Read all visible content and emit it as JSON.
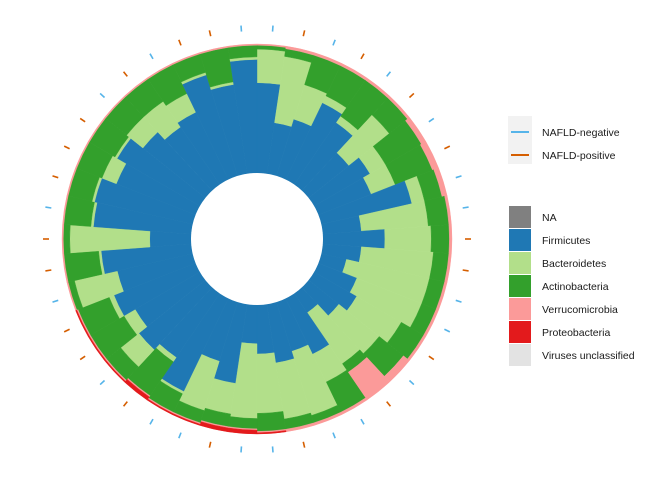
{
  "chart_data": {
    "type": "circular-stacked-bar",
    "title": "",
    "coordinate": "polar",
    "stack_order_inner_to_outer": [
      "NA",
      "Firmicutes",
      "Bacteroidetes",
      "Actinobacteria",
      "Verrucomicrobia",
      "Proteobacteria",
      "Viruses unclassified"
    ],
    "series": [
      {
        "name": "NA",
        "color": "#808080"
      },
      {
        "name": "Firmicutes",
        "color": "#1f78b4"
      },
      {
        "name": "Bacteroidetes",
        "color": "#b2df8a"
      },
      {
        "name": "Actinobacteria",
        "color": "#33a02c"
      },
      {
        "name": "Verrucomicrobia",
        "color": "#fb9a99"
      },
      {
        "name": "Proteobacteria",
        "color": "#e31a1c"
      },
      {
        "name": "Viruses unclassified",
        "color": "#e3e3e3"
      }
    ],
    "groups": [
      {
        "name": "NAFLD-negative",
        "color": "#56b4e9"
      },
      {
        "name": "NAFLD-positive",
        "color": "#d55e00"
      }
    ],
    "samples": [
      {
        "group": "NAFLD-negative",
        "values": [
          0,
          0.7,
          0.26,
          0.03,
          0.01,
          0,
          0
        ]
      },
      {
        "group": "NAFLD-positive",
        "values": [
          0,
          0.4,
          0.52,
          0.06,
          0.02,
          0,
          0
        ]
      },
      {
        "group": "NAFLD-negative",
        "values": [
          0,
          0.46,
          0.28,
          0.24,
          0.02,
          0,
          0
        ]
      },
      {
        "group": "NAFLD-positive",
        "values": [
          0,
          0.66,
          0.06,
          0.26,
          0.02,
          0,
          0
        ]
      },
      {
        "group": "NAFLD-negative",
        "values": [
          0,
          0.58,
          0.06,
          0.34,
          0.02,
          0,
          0
        ]
      },
      {
        "group": "NAFLD-positive",
        "values": [
          0,
          0.4,
          0.4,
          0.18,
          0.02,
          0,
          0
        ]
      },
      {
        "group": "NAFLD-negative",
        "values": [
          0,
          0.5,
          0.14,
          0.32,
          0.04,
          0,
          0
        ]
      },
      {
        "group": "NAFLD-positive",
        "values": [
          0,
          0.44,
          0.2,
          0.31,
          0.05,
          0,
          0
        ]
      },
      {
        "group": "NAFLD-negative",
        "values": [
          0,
          0.72,
          0.1,
          0.14,
          0.04,
          0,
          0
        ]
      },
      {
        "group": "NAFLD-negative",
        "values": [
          0,
          0.3,
          0.52,
          0.16,
          0.02,
          0,
          0
        ]
      },
      {
        "group": "NAFLD-positive",
        "values": [
          0,
          0.48,
          0.36,
          0.14,
          0.02,
          0,
          0
        ]
      },
      {
        "group": "NAFLD-positive",
        "values": [
          0,
          0.3,
          0.56,
          0.12,
          0.02,
          0,
          0
        ]
      },
      {
        "group": "NAFLD-negative",
        "values": [
          0,
          0.2,
          0.66,
          0.12,
          0.02,
          0,
          0
        ]
      },
      {
        "group": "NAFLD-negative",
        "values": [
          0,
          0.32,
          0.54,
          0.12,
          0.02,
          0,
          0
        ]
      },
      {
        "group": "NAFLD-positive",
        "values": [
          0,
          0.38,
          0.4,
          0.2,
          0.02,
          0,
          0
        ]
      },
      {
        "group": "NAFLD-negative",
        "values": [
          0,
          0.3,
          0.4,
          0.24,
          0.06,
          0,
          0
        ]
      },
      {
        "group": "NAFLD-positive",
        "values": [
          0,
          0.18,
          0.48,
          0.08,
          0.26,
          0,
          0
        ]
      },
      {
        "group": "NAFLD-negative",
        "values": [
          0,
          0.48,
          0.24,
          0.26,
          0.02,
          0,
          0
        ]
      },
      {
        "group": "NAFLD-negative",
        "values": [
          0,
          0.4,
          0.52,
          0.06,
          0.02,
          0,
          0
        ]
      },
      {
        "group": "NAFLD-positive",
        "values": [
          0,
          0.46,
          0.44,
          0.08,
          0.02,
          0,
          0
        ]
      },
      {
        "group": "NAFLD-negative",
        "values": [
          0,
          0.38,
          0.46,
          0.14,
          0.01,
          0.01,
          0
        ]
      },
      {
        "group": "NAFLD-negative",
        "values": [
          0,
          0.3,
          0.58,
          0.08,
          0.01,
          0.03,
          0
        ]
      },
      {
        "group": "NAFLD-positive",
        "values": [
          0,
          0.62,
          0.24,
          0.1,
          0.01,
          0.03,
          0
        ]
      },
      {
        "group": "NAFLD-negative",
        "values": [
          0,
          0.48,
          0.4,
          0.1,
          0.01,
          0.01,
          0
        ]
      },
      {
        "group": "NAFLD-negative",
        "values": [
          0,
          0.8,
          0.02,
          0.16,
          0.01,
          0.01,
          0
        ]
      },
      {
        "group": "NAFLD-positive",
        "values": [
          0,
          0.6,
          0.04,
          0.32,
          0.01,
          0.03,
          0
        ]
      },
      {
        "group": "NAFLD-negative",
        "values": [
          0,
          0.66,
          0.18,
          0.14,
          0.01,
          0.01,
          0
        ]
      },
      {
        "group": "NAFLD-positive",
        "values": [
          0,
          0.58,
          0.1,
          0.3,
          0.01,
          0.01,
          0
        ]
      },
      {
        "group": "NAFLD-positive",
        "values": [
          0,
          0.68,
          0.04,
          0.26,
          0.01,
          0.01,
          0
        ]
      },
      {
        "group": "NAFLD-negative",
        "values": [
          0,
          0.6,
          0.34,
          0.05,
          0.01,
          0,
          0
        ]
      },
      {
        "group": "NAFLD-positive",
        "values": [
          0,
          0.7,
          0.02,
          0.27,
          0.01,
          0,
          0
        ]
      },
      {
        "group": "NAFLD-positive",
        "values": [
          0,
          0.32,
          0.62,
          0.05,
          0.01,
          0,
          0
        ]
      },
      {
        "group": "NAFLD-negative",
        "values": [
          0,
          0.76,
          0.02,
          0.21,
          0.01,
          0,
          0
        ]
      },
      {
        "group": "NAFLD-positive",
        "values": [
          0,
          0.78,
          0.02,
          0.19,
          0.01,
          0,
          0
        ]
      },
      {
        "group": "NAFLD-positive",
        "values": [
          0,
          0.66,
          0.12,
          0.21,
          0.01,
          0,
          0
        ]
      },
      {
        "group": "NAFLD-positive",
        "values": [
          0,
          0.74,
          0.02,
          0.23,
          0.01,
          0,
          0
        ]
      },
      {
        "group": "NAFLD-negative",
        "values": [
          0,
          0.62,
          0.16,
          0.21,
          0.01,
          0,
          0
        ]
      },
      {
        "group": "NAFLD-positive",
        "values": [
          0,
          0.54,
          0.24,
          0.21,
          0.01,
          0,
          0
        ]
      },
      {
        "group": "NAFLD-negative",
        "values": [
          0,
          0.58,
          0.16,
          0.25,
          0.01,
          0,
          0
        ]
      },
      {
        "group": "NAFLD-positive",
        "values": [
          0,
          0.82,
          0.02,
          0.15,
          0.01,
          0,
          0
        ]
      },
      {
        "group": "NAFLD-positive",
        "values": [
          0,
          0.7,
          0.02,
          0.27,
          0.01,
          0,
          0
        ]
      },
      {
        "group": "NAFLD-negative",
        "values": [
          0,
          0.88,
          0.02,
          0.09,
          0.01,
          0,
          0
        ]
      }
    ]
  },
  "legend": {
    "groups": [
      {
        "label": "NAFLD-negative",
        "color": "#56b4e9"
      },
      {
        "label": "NAFLD-positive",
        "color": "#d55e00"
      }
    ],
    "taxa": [
      {
        "label": "NA",
        "color": "#808080"
      },
      {
        "label": "Firmicutes",
        "color": "#1f78b4"
      },
      {
        "label": "Bacteroidetes",
        "color": "#b2df8a"
      },
      {
        "label": "Actinobacteria",
        "color": "#33a02c"
      },
      {
        "label": "Verrucomicrobia",
        "color": "#fb9a99"
      },
      {
        "label": "Proteobacteria",
        "color": "#e31a1c"
      },
      {
        "label": "Viruses unclassified",
        "color": "#e3e3e3"
      }
    ]
  }
}
